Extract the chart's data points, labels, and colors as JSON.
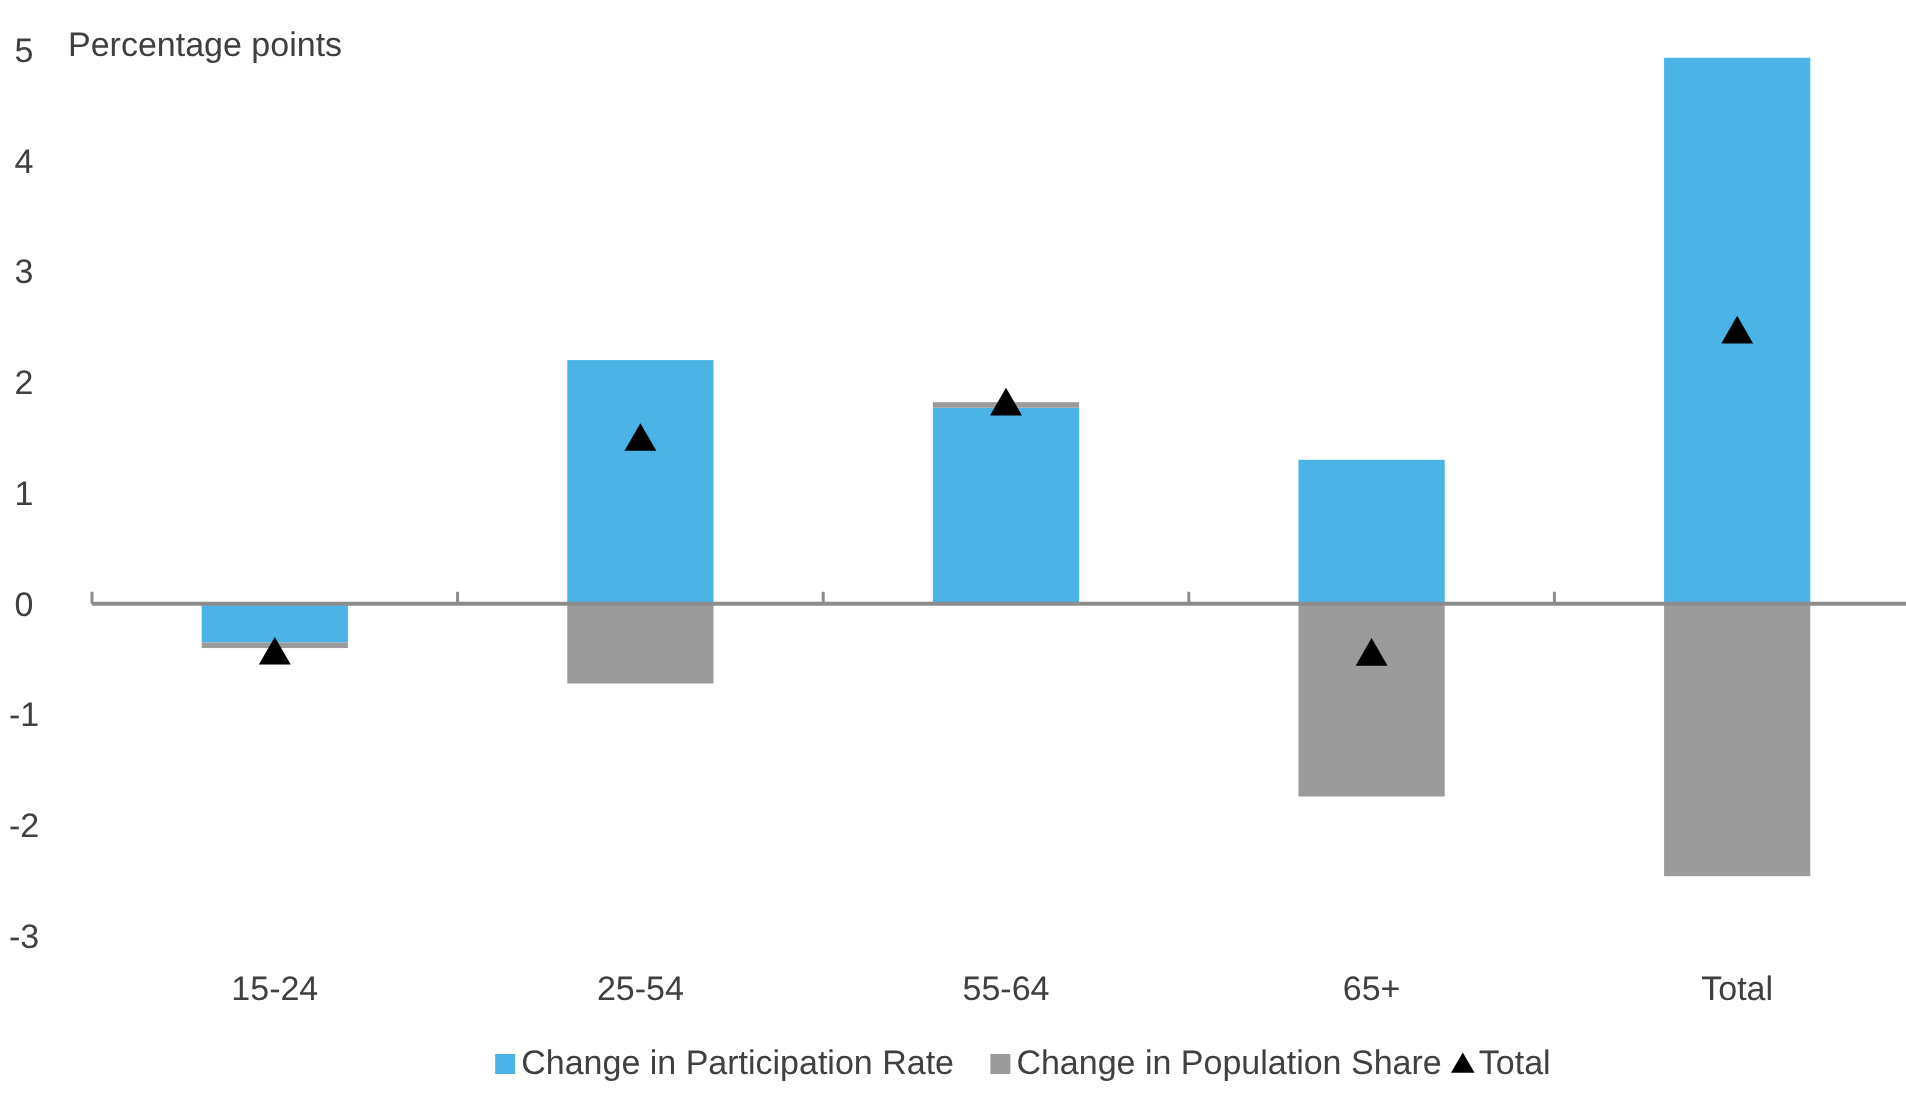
{
  "chart_data": {
    "type": "bar",
    "stacked": true,
    "ylabel": "Percentage points",
    "categories": [
      "15-24",
      "25-54",
      "55-64",
      "65+",
      "Total"
    ],
    "series": [
      {
        "name": "Change in Participation Rate",
        "color": "#4bb3e6",
        "values": [
          -0.35,
          2.2,
          1.77,
          1.3,
          4.93
        ]
      },
      {
        "name": "Change in Population Share",
        "color": "#9b9b9b",
        "values": [
          -0.05,
          -0.72,
          0.05,
          -1.74,
          -2.46
        ]
      },
      {
        "name": "Total",
        "type": "scatter",
        "marker": "triangle",
        "color": "#000000",
        "x": [
          "15-24",
          "25-54",
          "55-64",
          "65+",
          "Total"
        ],
        "values": [
          -0.43,
          1.5,
          1.82,
          -0.44,
          2.47
        ]
      }
    ],
    "ylim": [
      -3,
      5
    ],
    "yticks": [
      -3,
      -2,
      -1,
      0,
      1,
      2,
      3,
      4,
      5
    ],
    "legend": "bottom"
  }
}
